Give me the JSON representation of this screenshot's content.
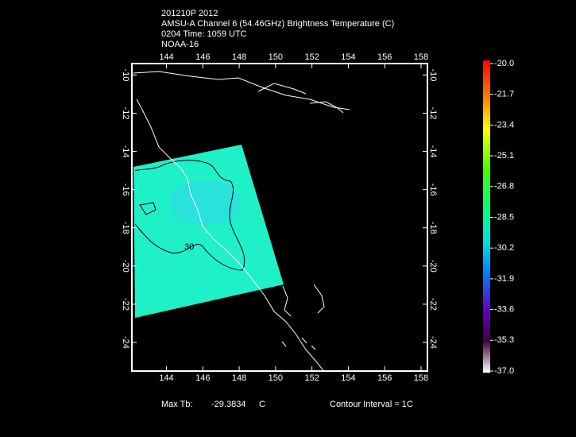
{
  "header": {
    "lines": [
      "201210P 2012",
      "AMSU-A Channel 6 (54.46GHz) Brightness Temperature (C)",
      "0204 Time: 1059 UTC",
      "NOAA-16"
    ]
  },
  "map": {
    "xlim": [
      142.1,
      158.35
    ],
    "xticks": [
      144,
      146,
      148,
      150,
      152,
      154,
      156,
      158
    ],
    "ylim": [
      -9.4,
      -25.5
    ],
    "yticks": [
      -10,
      -12,
      -14,
      -16,
      -18,
      -20,
      -22,
      -24
    ],
    "contour_label": "30"
  },
  "colorbar": {
    "clim": [
      -37,
      -20
    ],
    "ticks": [
      {
        "value": -20,
        "label": "-20.0"
      },
      {
        "value": -21.7,
        "label": "-21.7"
      },
      {
        "value": -23.4,
        "label": "-23.4"
      },
      {
        "value": -25.1,
        "label": "-25.1"
      },
      {
        "value": -26.8,
        "label": "-26.8"
      },
      {
        "value": -28.5,
        "label": "-28.5"
      },
      {
        "value": -30.2,
        "label": "-30.2"
      },
      {
        "value": -31.9,
        "label": "-31.9"
      },
      {
        "value": -33.6,
        "label": "-33.6"
      },
      {
        "value": -35.3,
        "label": "-35.3"
      },
      {
        "value": -37,
        "label": "-37.0"
      }
    ]
  },
  "footer": {
    "max_label": "Max Tb:",
    "max_value": "-29.3834",
    "max_unit": "C",
    "contour_interval": "Contour Interval = 1C"
  }
}
